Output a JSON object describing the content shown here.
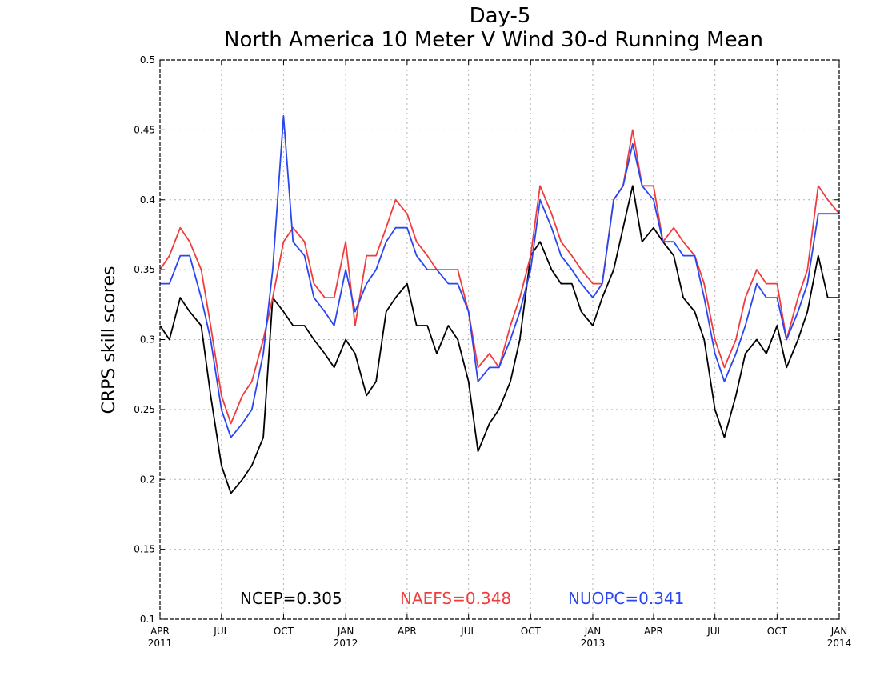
{
  "chart_data": {
    "type": "line",
    "title": "Day-5",
    "subtitle": "North America 10 Meter V Wind 30-d Running Mean",
    "xlabel": "",
    "ylabel": "CRPS skill scores",
    "ylim": [
      0.1,
      0.5
    ],
    "xlim": [
      "2011-04-01",
      "2014-01-01"
    ],
    "yticks": [
      {
        "value": 0.1,
        "label": "0.1"
      },
      {
        "value": 0.15,
        "label": "0.15"
      },
      {
        "value": 0.2,
        "label": "0.2"
      },
      {
        "value": 0.25,
        "label": "0.25"
      },
      {
        "value": 0.3,
        "label": "0.3"
      },
      {
        "value": 0.35,
        "label": "0.35"
      },
      {
        "value": 0.4,
        "label": "0.4"
      },
      {
        "value": 0.45,
        "label": "0.45"
      },
      {
        "value": 0.5,
        "label": "0.5"
      }
    ],
    "xticks": [
      {
        "date": "2011-04-01",
        "label": "APR",
        "year": "2011"
      },
      {
        "date": "2011-07-01",
        "label": "JUL",
        "year": ""
      },
      {
        "date": "2011-10-01",
        "label": "OCT",
        "year": ""
      },
      {
        "date": "2012-01-01",
        "label": "JAN",
        "year": "2012"
      },
      {
        "date": "2012-04-01",
        "label": "APR",
        "year": ""
      },
      {
        "date": "2012-07-01",
        "label": "JUL",
        "year": ""
      },
      {
        "date": "2012-10-01",
        "label": "OCT",
        "year": ""
      },
      {
        "date": "2013-01-01",
        "label": "JAN",
        "year": "2013"
      },
      {
        "date": "2013-04-01",
        "label": "APR",
        "year": ""
      },
      {
        "date": "2013-07-01",
        "label": "JUL",
        "year": ""
      },
      {
        "date": "2013-10-01",
        "label": "OCT",
        "year": ""
      },
      {
        "date": "2014-01-01",
        "label": "JAN",
        "year": "2014"
      }
    ],
    "grid": true,
    "legend_position": "bottom-center",
    "x": [
      "2011-04-01",
      "2011-04-15",
      "2011-05-01",
      "2011-05-15",
      "2011-06-01",
      "2011-06-15",
      "2011-07-01",
      "2011-07-15",
      "2011-08-01",
      "2011-08-15",
      "2011-09-01",
      "2011-09-15",
      "2011-10-01",
      "2011-10-15",
      "2011-11-01",
      "2011-11-15",
      "2011-12-01",
      "2011-12-15",
      "2012-01-01",
      "2012-01-15",
      "2012-02-01",
      "2012-02-15",
      "2012-03-01",
      "2012-03-15",
      "2012-04-01",
      "2012-04-15",
      "2012-05-01",
      "2012-05-15",
      "2012-06-01",
      "2012-06-15",
      "2012-07-01",
      "2012-07-15",
      "2012-08-01",
      "2012-08-15",
      "2012-09-01",
      "2012-09-15",
      "2012-10-01",
      "2012-10-15",
      "2012-11-01",
      "2012-11-15",
      "2012-12-01",
      "2012-12-15",
      "2013-01-01",
      "2013-01-15",
      "2013-02-01",
      "2013-02-15",
      "2013-03-01",
      "2013-03-15",
      "2013-04-01",
      "2013-04-15",
      "2013-05-01",
      "2013-05-15",
      "2013-06-01",
      "2013-06-15",
      "2013-07-01",
      "2013-07-15",
      "2013-08-01",
      "2013-08-15",
      "2013-09-01",
      "2013-09-15",
      "2013-10-01",
      "2013-10-15",
      "2013-11-01",
      "2013-11-15",
      "2013-12-01",
      "2013-12-15",
      "2014-01-01"
    ],
    "series": [
      {
        "name": "NCEP",
        "color": "#000000",
        "values": [
          0.31,
          0.3,
          0.33,
          0.32,
          0.31,
          0.26,
          0.21,
          0.19,
          0.2,
          0.21,
          0.23,
          0.33,
          0.32,
          0.31,
          0.31,
          0.3,
          0.29,
          0.28,
          0.3,
          0.29,
          0.26,
          0.27,
          0.32,
          0.33,
          0.34,
          0.31,
          0.31,
          0.29,
          0.31,
          0.3,
          0.27,
          0.22,
          0.24,
          0.25,
          0.27,
          0.3,
          0.36,
          0.37,
          0.35,
          0.34,
          0.34,
          0.32,
          0.31,
          0.33,
          0.35,
          0.38,
          0.41,
          0.37,
          0.38,
          0.37,
          0.36,
          0.33,
          0.32,
          0.3,
          0.25,
          0.23,
          0.26,
          0.29,
          0.3,
          0.29,
          0.31,
          0.28,
          0.3,
          0.32,
          0.36,
          0.33,
          0.33
        ]
      },
      {
        "name": "NAEFS",
        "color": "#f03c3c",
        "values": [
          0.35,
          0.36,
          0.38,
          0.37,
          0.35,
          0.31,
          0.26,
          0.24,
          0.26,
          0.27,
          0.3,
          0.33,
          0.37,
          0.38,
          0.37,
          0.34,
          0.33,
          0.33,
          0.37,
          0.31,
          0.36,
          0.36,
          0.38,
          0.4,
          0.39,
          0.37,
          0.36,
          0.35,
          0.35,
          0.35,
          0.32,
          0.28,
          0.29,
          0.28,
          0.31,
          0.33,
          0.36,
          0.41,
          0.39,
          0.37,
          0.36,
          0.35,
          0.34,
          0.34,
          0.4,
          0.41,
          0.45,
          0.41,
          0.41,
          0.37,
          0.38,
          0.37,
          0.36,
          0.34,
          0.3,
          0.28,
          0.3,
          0.33,
          0.35,
          0.34,
          0.34,
          0.3,
          0.33,
          0.35,
          0.41,
          0.4,
          0.39
        ]
      },
      {
        "name": "NUOPC",
        "color": "#2a46f0",
        "values": [
          0.34,
          0.34,
          0.36,
          0.36,
          0.33,
          0.3,
          0.25,
          0.23,
          0.24,
          0.25,
          0.29,
          0.35,
          0.46,
          0.37,
          0.36,
          0.33,
          0.32,
          0.31,
          0.35,
          0.32,
          0.34,
          0.35,
          0.37,
          0.38,
          0.38,
          0.36,
          0.35,
          0.35,
          0.34,
          0.34,
          0.32,
          0.27,
          0.28,
          0.28,
          0.3,
          0.32,
          0.35,
          0.4,
          0.38,
          0.36,
          0.35,
          0.34,
          0.33,
          0.34,
          0.4,
          0.41,
          0.44,
          0.41,
          0.4,
          0.37,
          0.37,
          0.36,
          0.36,
          0.33,
          0.29,
          0.27,
          0.29,
          0.31,
          0.34,
          0.33,
          0.33,
          0.3,
          0.32,
          0.34,
          0.39,
          0.39,
          0.39
        ]
      }
    ],
    "legend": [
      {
        "label": "NCEP=0.305",
        "color": "#000000"
      },
      {
        "label": "NAEFS=0.348",
        "color": "#f03c3c"
      },
      {
        "label": "NUOPC=0.341",
        "color": "#2a46f0"
      }
    ]
  }
}
